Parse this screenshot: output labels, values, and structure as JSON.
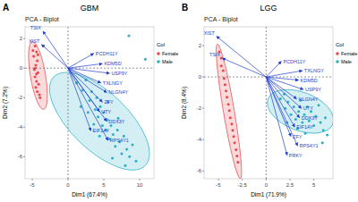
{
  "chart_data": [
    {
      "type": "scatter",
      "panel": "A",
      "title": "GBM",
      "subtitle": "PCA - Biplot",
      "x_label": "Dim1 (67.4%)",
      "y_label": "Dim2 (7.2%)",
      "xlim": [
        -6,
        12
      ],
      "ylim": [
        -7.5,
        2.8
      ],
      "xticks": [
        -5,
        0,
        5,
        10
      ],
      "yticks": [
        -6,
        -4,
        -2,
        0,
        2
      ],
      "grid": false,
      "legend": "right",
      "legend_title": "Col",
      "reference_lines": {
        "x": 0,
        "y": 0
      },
      "series": [
        {
          "name": "Female",
          "color": "#e8474a",
          "x": [
            -4.6,
            -4.4,
            -4.8,
            -4.3,
            -4.5,
            -4.7,
            -4.2,
            -4.6,
            -4.4,
            -4.1,
            -4.5,
            -4.3,
            -4.0,
            -4.6,
            -4.9,
            -4.2,
            -4.4,
            -3.9
          ],
          "y": [
            1.5,
            1.1,
            0.8,
            0.5,
            0.2,
            -0.1,
            -0.3,
            -0.6,
            -0.9,
            -1.1,
            -1.3,
            -1.6,
            -1.8,
            0.0,
            1.2,
            0.9,
            -0.4,
            -2.0
          ],
          "ellipse": {
            "center": [
              -4.2,
              -0.5
            ],
            "axis_end": [
              -3.4,
              -2.8
            ],
            "minor_ratio": 0.22
          }
        },
        {
          "name": "Male",
          "color": "#2ab0c4",
          "x": [
            1.2,
            2.0,
            2.5,
            3.0,
            3.3,
            3.8,
            4.0,
            4.2,
            4.5,
            4.8,
            5.0,
            5.3,
            5.5,
            5.8,
            6.0,
            6.3,
            6.6,
            6.9,
            7.2,
            7.5,
            7.8,
            8.2,
            8.6,
            9.0,
            3.6,
            2.8,
            5.6,
            7.0,
            4.4,
            6.2,
            8.0,
            9.5,
            10.8,
            8.5,
            1.8
          ],
          "y": [
            -1.0,
            -1.5,
            -0.8,
            -2.2,
            -1.6,
            -2.8,
            -2.0,
            -3.3,
            -2.6,
            -3.9,
            -3.0,
            -4.2,
            -3.5,
            -4.8,
            -3.9,
            -4.5,
            -5.3,
            -4.2,
            -5.0,
            -5.8,
            -4.6,
            -5.5,
            -6.0,
            -5.2,
            -3.8,
            -3.0,
            -2.3,
            -3.4,
            -4.6,
            -6.1,
            -6.6,
            -6.3,
            0.6,
            2.2,
            -2.6
          ],
          "ellipse": {
            "center": [
              4.4,
              -3.6
            ],
            "axis_end": [
              10.8,
              -6.6
            ],
            "minor_ratio": 0.45
          }
        }
      ],
      "arrows": {
        "color": "#1f3fd0",
        "labels": [
          "XIST",
          "TSIX",
          "PCDH11Y",
          "KDM5D",
          "USP9Y",
          "TXLNGY",
          "NLGN4Y",
          "ZFY",
          "UTY",
          "DDX3Y",
          "EIF1AY",
          "RPS4Y1"
        ],
        "x": [
          -3.7,
          -3.5,
          3.6,
          4.8,
          5.8,
          4.6,
          5.4,
          4.8,
          4.4,
          5.4,
          3.2,
          5.6
        ],
        "y": [
          1.6,
          2.5,
          1.0,
          0.3,
          -0.35,
          -1.0,
          -1.65,
          -2.3,
          -2.95,
          -3.6,
          -4.25,
          -4.9
        ]
      }
    },
    {
      "type": "scatter",
      "panel": "B",
      "title": "LGG",
      "subtitle": "PCA - Biplot",
      "x_label": "Dim1 (71.9%)",
      "y_label": "Dim2 (8.4%)",
      "xlim": [
        -6.5,
        7
      ],
      "ylim": [
        -6.5,
        3.2
      ],
      "xticks": [
        -5,
        -2.5,
        0,
        2.5,
        5
      ],
      "yticks": [
        -6,
        -4,
        -2,
        0,
        2
      ],
      "grid": false,
      "legend": "right",
      "legend_title": "Col",
      "reference_lines": {
        "x": 0,
        "y": 0
      },
      "series": [
        {
          "name": "Female",
          "color": "#e8474a",
          "x": [
            -4.9,
            -4.7,
            -4.7,
            -4.5,
            -4.4,
            -4.3,
            -4.2,
            -4.1,
            -3.95,
            -3.85,
            -3.75,
            -3.6,
            -3.5,
            -3.4,
            -3.3,
            -3.15,
            -3.05,
            -2.95
          ],
          "y": [
            1.6,
            1.2,
            0.7,
            0.4,
            -0.1,
            -0.5,
            -0.9,
            -1.3,
            -1.75,
            -2.15,
            -2.6,
            -3.0,
            -3.4,
            -3.8,
            -4.2,
            -4.65,
            -5.05,
            -5.45
          ],
          "ellipse": {
            "center": [
              -3.9,
              -2.2
            ],
            "axis_end": [
              -2.7,
              -6.5
            ],
            "minor_ratio": 0.08
          }
        },
        {
          "name": "Male",
          "color": "#2ab0c4",
          "x": [
            1.5,
            2.0,
            2.3,
            2.6,
            2.9,
            3.1,
            3.4,
            3.6,
            3.8,
            4.0,
            4.3,
            4.5,
            4.7,
            5.0,
            5.2,
            5.5,
            5.7,
            6.0,
            6.2,
            2.2,
            3.3,
            4.1,
            1.9,
            6.4,
            5.9
          ],
          "y": [
            -1.4,
            -2.0,
            -1.6,
            -2.4,
            -1.9,
            -2.7,
            -2.2,
            -1.5,
            -2.9,
            -2.4,
            -1.9,
            -2.8,
            -2.2,
            -3.1,
            -2.5,
            -1.8,
            -2.9,
            -3.4,
            -2.6,
            -2.9,
            -3.3,
            -3.6,
            -1.1,
            -3.7,
            -4.2
          ],
          "ellipse": {
            "center": [
              3.6,
              -2.2
            ],
            "axis_end": [
              7.0,
              -3.0
            ],
            "minor_ratio": 0.55
          }
        }
      ],
      "arrows": {
        "color": "#1f3fd0",
        "labels": [
          "XIST",
          "TSIX",
          "PCDH11Y",
          "TXLNGY",
          "KDM5D",
          "USP9Y",
          "NLGN4Y",
          "UTY",
          "DDX3Y",
          "EIF1AY",
          "ZFY",
          "RPS4Y1",
          "PRKY"
        ],
        "x": [
          -5.2,
          -4.6,
          1.6,
          3.8,
          3.4,
          3.9,
          3.2,
          3.7,
          3.5,
          3.0,
          2.6,
          3.3,
          2.2
        ],
        "y": [
          2.6,
          1.2,
          1.0,
          0.4,
          -0.2,
          -0.8,
          -1.4,
          -2.0,
          -2.6,
          -3.2,
          -3.8,
          -4.4,
          -5.0
        ]
      }
    }
  ]
}
